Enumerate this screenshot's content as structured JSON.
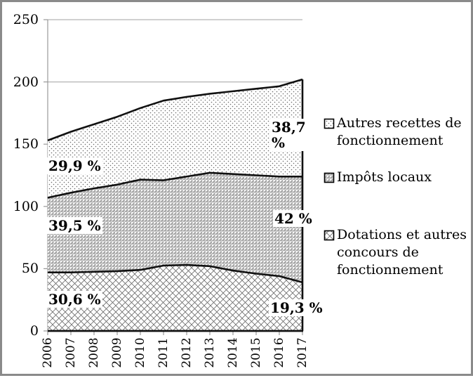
{
  "chart_data": {
    "type": "area",
    "stacked": true,
    "title": "",
    "xlabel": "",
    "ylabel": "",
    "categories": [
      "2006",
      "2007",
      "2008",
      "2009",
      "2010",
      "2011",
      "2012",
      "2013",
      "2014",
      "2015",
      "2016",
      "2017"
    ],
    "series": [
      {
        "name": "Dotations et autres concours de fonctionnement",
        "pattern": "diamond-lattice",
        "values": [
          47,
          47,
          47.5,
          48,
          49,
          52.5,
          53,
          52,
          48.5,
          46,
          44,
          39
        ]
      },
      {
        "name": "Impôts locaux",
        "pattern": "diagonal-hatch",
        "values": [
          60,
          64,
          67,
          69.5,
          72.5,
          68.5,
          71,
          75,
          77.5,
          79,
          80,
          85
        ]
      },
      {
        "name": "Autres recettes de fonctionnement",
        "pattern": "dots",
        "values": [
          46,
          49,
          51.5,
          54.5,
          57.5,
          64,
          64,
          63.5,
          66.5,
          69.5,
          72.5,
          78
        ]
      }
    ],
    "ylim": [
      0,
      250
    ],
    "yticks": [
      0,
      50,
      100,
      150,
      200,
      250
    ],
    "grid": "horizontal",
    "legend_position": "right",
    "annotations": {
      "autres_left": "29,9 %",
      "impots_left": "39,5 %",
      "dotations_left": "30,6 %",
      "autres_right": "38,7 %",
      "impots_right": "42 %",
      "dotations_right": "19,3 %"
    }
  },
  "legend": {
    "items": [
      {
        "label": "Autres recettes de fonctionnement",
        "pattern": "dots"
      },
      {
        "label": "Impôts locaux",
        "pattern": "diagonal-hatch"
      },
      {
        "label": "Dotations et autres concours de fonctionnement",
        "pattern": "diamond-lattice"
      }
    ]
  },
  "colors": {
    "frame_border": "#8a8a8a",
    "background": "#ffffff",
    "gridline": "#b3b3b3",
    "axis": "#999999",
    "series_line": "#111111",
    "pattern_ink": "#6b6b6b",
    "text": "#000000"
  }
}
